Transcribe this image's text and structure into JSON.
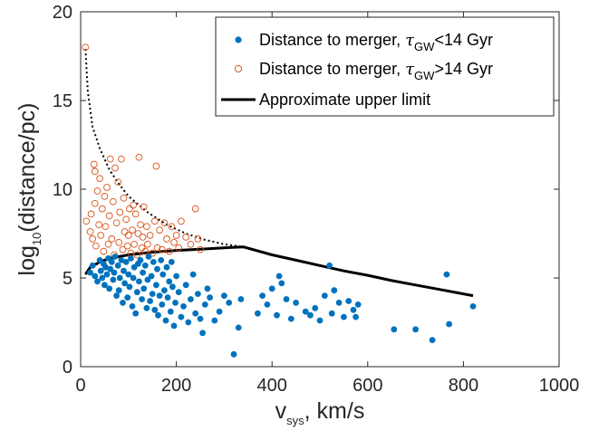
{
  "chart_data": {
    "type": "scatter",
    "xlabel": {
      "main": "v",
      "sub": "sys",
      "tail": ", km/s"
    },
    "ylabel": {
      "main": "log",
      "sub": "10",
      "tail": "(distance/pc)"
    },
    "xlim": [
      0,
      1000
    ],
    "ylim": [
      0,
      20
    ],
    "xticks": [
      0,
      200,
      400,
      600,
      800,
      1000
    ],
    "yticks": [
      0,
      5,
      10,
      15,
      20
    ],
    "grid": false,
    "legend_position": "top-right",
    "legend": [
      {
        "symbol": "filled-dot",
        "color": "#0072BD",
        "text_main": "Distance to merger, ",
        "greek": "τ",
        "sub": "GW",
        "tail": "<14 Gyr"
      },
      {
        "symbol": "open-circle",
        "color": "#D95319",
        "text_main": "Distance to merger, ",
        "greek": "τ",
        "sub": "GW",
        "tail": ">14 Gyr"
      },
      {
        "symbol": "line",
        "color": "#000000",
        "text_main": "Approximate upper limit"
      }
    ],
    "series": [
      {
        "name": "Distance to merger, τGW<14 Gyr",
        "style": "filled",
        "color": "#0072BD",
        "points": [
          [
            20,
            5.3
          ],
          [
            25,
            5.7
          ],
          [
            30,
            5.1
          ],
          [
            35,
            4.8
          ],
          [
            40,
            6.0
          ],
          [
            42,
            5.4
          ],
          [
            45,
            5.0
          ],
          [
            48,
            5.8
          ],
          [
            50,
            4.6
          ],
          [
            52,
            5.6
          ],
          [
            55,
            5.2
          ],
          [
            58,
            6.1
          ],
          [
            60,
            4.4
          ],
          [
            62,
            5.5
          ],
          [
            65,
            5.9
          ],
          [
            68,
            4.9
          ],
          [
            70,
            5.3
          ],
          [
            72,
            6.2
          ],
          [
            75,
            4.0
          ],
          [
            78,
            5.7
          ],
          [
            80,
            4.3
          ],
          [
            82,
            5.0
          ],
          [
            85,
            6.0
          ],
          [
            88,
            3.6
          ],
          [
            90,
            5.4
          ],
          [
            92,
            4.7
          ],
          [
            95,
            5.9
          ],
          [
            98,
            3.9
          ],
          [
            100,
            5.2
          ],
          [
            102,
            4.5
          ],
          [
            105,
            6.1
          ],
          [
            108,
            3.4
          ],
          [
            110,
            5.0
          ],
          [
            112,
            5.6
          ],
          [
            115,
            3.0
          ],
          [
            118,
            4.2
          ],
          [
            120,
            5.8
          ],
          [
            122,
            4.8
          ],
          [
            125,
            6.0
          ],
          [
            128,
            3.8
          ],
          [
            130,
            5.3
          ],
          [
            132,
            4.4
          ],
          [
            135,
            5.7
          ],
          [
            138,
            3.3
          ],
          [
            140,
            4.9
          ],
          [
            142,
            6.2
          ],
          [
            145,
            3.7
          ],
          [
            148,
            5.1
          ],
          [
            150,
            4.1
          ],
          [
            152,
            5.9
          ],
          [
            155,
            3.2
          ],
          [
            158,
            4.6
          ],
          [
            160,
            5.5
          ],
          [
            162,
            2.9
          ],
          [
            165,
            4.0
          ],
          [
            168,
            6.0
          ],
          [
            170,
            3.5
          ],
          [
            172,
            5.2
          ],
          [
            175,
            4.3
          ],
          [
            178,
            2.6
          ],
          [
            180,
            5.6
          ],
          [
            182,
            3.9
          ],
          [
            185,
            4.8
          ],
          [
            188,
            3.1
          ],
          [
            190,
            5.9
          ],
          [
            192,
            4.5
          ],
          [
            195,
            2.3
          ],
          [
            198,
            3.6
          ],
          [
            200,
            5.1
          ],
          [
            205,
            4.2
          ],
          [
            210,
            2.8
          ],
          [
            215,
            3.4
          ],
          [
            220,
            4.6
          ],
          [
            225,
            2.5
          ],
          [
            230,
            3.8
          ],
          [
            235,
            5.2
          ],
          [
            240,
            3.0
          ],
          [
            245,
            4.1
          ],
          [
            250,
            2.7
          ],
          [
            255,
            1.9
          ],
          [
            260,
            3.5
          ],
          [
            265,
            4.4
          ],
          [
            270,
            3.9
          ],
          [
            280,
            2.6
          ],
          [
            290,
            3.1
          ],
          [
            300,
            4.0
          ],
          [
            310,
            3.6
          ],
          [
            320,
            0.7
          ],
          [
            330,
            2.2
          ],
          [
            335,
            3.8
          ],
          [
            370,
            3.0
          ],
          [
            380,
            4.0
          ],
          [
            390,
            3.5
          ],
          [
            400,
            4.4
          ],
          [
            410,
            2.9
          ],
          [
            415,
            5.1
          ],
          [
            420,
            4.7
          ],
          [
            430,
            3.8
          ],
          [
            440,
            2.7
          ],
          [
            450,
            3.6
          ],
          [
            470,
            3.1
          ],
          [
            480,
            2.9
          ],
          [
            490,
            3.3
          ],
          [
            500,
            2.6
          ],
          [
            510,
            4.0
          ],
          [
            520,
            5.7
          ],
          [
            525,
            3.0
          ],
          [
            530,
            4.3
          ],
          [
            540,
            3.6
          ],
          [
            550,
            2.8
          ],
          [
            560,
            3.7
          ],
          [
            570,
            3.2
          ],
          [
            575,
            2.8
          ],
          [
            580,
            3.5
          ],
          [
            655,
            2.1
          ],
          [
            700,
            2.1
          ],
          [
            735,
            1.5
          ],
          [
            765,
            5.2
          ],
          [
            770,
            2.4
          ],
          [
            820,
            3.4
          ]
        ]
      },
      {
        "name": "Distance to merger, τGW>14 Gyr",
        "style": "open",
        "color": "#D95319",
        "points": [
          [
            10,
            18.0
          ],
          [
            12,
            8.2
          ],
          [
            20,
            7.6
          ],
          [
            22,
            8.6
          ],
          [
            25,
            7.2
          ],
          [
            28,
            11.4
          ],
          [
            30,
            11.0
          ],
          [
            30,
            9.2
          ],
          [
            32,
            6.8
          ],
          [
            35,
            9.9
          ],
          [
            38,
            8.0
          ],
          [
            40,
            10.6
          ],
          [
            42,
            7.4
          ],
          [
            45,
            8.9
          ],
          [
            48,
            6.5
          ],
          [
            50,
            9.6
          ],
          [
            52,
            7.9
          ],
          [
            55,
            10.1
          ],
          [
            58,
            6.9
          ],
          [
            60,
            8.5
          ],
          [
            62,
            11.7
          ],
          [
            65,
            7.2
          ],
          [
            68,
            9.3
          ],
          [
            70,
            6.3
          ],
          [
            72,
            11.2
          ],
          [
            75,
            8.1
          ],
          [
            78,
            10.4
          ],
          [
            80,
            7.0
          ],
          [
            82,
            8.7
          ],
          [
            85,
            11.7
          ],
          [
            88,
            6.6
          ],
          [
            90,
            9.5
          ],
          [
            92,
            7.6
          ],
          [
            95,
            8.3
          ],
          [
            98,
            6.8
          ],
          [
            100,
            7.4
          ],
          [
            102,
            8.9
          ],
          [
            105,
            6.4
          ],
          [
            108,
            7.7
          ],
          [
            110,
            9.1
          ],
          [
            112,
            6.9
          ],
          [
            115,
            8.6
          ],
          [
            118,
            6.3
          ],
          [
            120,
            7.5
          ],
          [
            122,
            11.8
          ],
          [
            125,
            8.0
          ],
          [
            128,
            6.7
          ],
          [
            130,
            7.3
          ],
          [
            132,
            9.0
          ],
          [
            135,
            6.5
          ],
          [
            138,
            7.9
          ],
          [
            140,
            6.9
          ],
          [
            145,
            7.4
          ],
          [
            150,
            6.4
          ],
          [
            155,
            8.2
          ],
          [
            158,
            11.3
          ],
          [
            160,
            6.7
          ],
          [
            165,
            7.7
          ],
          [
            170,
            6.6
          ],
          [
            175,
            8.1
          ],
          [
            180,
            7.2
          ],
          [
            185,
            6.5
          ],
          [
            190,
            7.9
          ],
          [
            195,
            7.0
          ],
          [
            200,
            7.4
          ],
          [
            205,
            6.7
          ],
          [
            210,
            8.2
          ],
          [
            220,
            7.3
          ],
          [
            230,
            6.9
          ],
          [
            240,
            8.9
          ],
          [
            245,
            7.2
          ],
          [
            250,
            6.6
          ]
        ]
      }
    ],
    "upper_limit": {
      "name": "Approximate upper limit",
      "color": "#000000",
      "solid": [
        [
          10,
          5.2
        ],
        [
          20,
          5.6
        ],
        [
          40,
          5.9
        ],
        [
          60,
          6.1
        ],
        [
          100,
          6.3
        ],
        [
          150,
          6.45
        ],
        [
          200,
          6.55
        ],
        [
          250,
          6.62
        ],
        [
          300,
          6.7
        ],
        [
          340,
          6.75
        ],
        [
          400,
          6.3
        ],
        [
          450,
          6.0
        ],
        [
          500,
          5.7
        ],
        [
          550,
          5.4
        ],
        [
          600,
          5.15
        ],
        [
          650,
          4.85
        ],
        [
          700,
          4.6
        ],
        [
          750,
          4.35
        ],
        [
          820,
          4.0
        ]
      ],
      "dotted": [
        [
          10,
          17.9
        ],
        [
          15,
          15.5
        ],
        [
          25,
          13.5
        ],
        [
          40,
          12.3
        ],
        [
          60,
          11.1
        ],
        [
          80,
          10.3
        ],
        [
          100,
          9.6
        ],
        [
          140,
          8.7
        ],
        [
          180,
          8.0
        ],
        [
          220,
          7.5
        ],
        [
          260,
          7.15
        ],
        [
          300,
          6.9
        ],
        [
          340,
          6.75
        ]
      ]
    }
  }
}
